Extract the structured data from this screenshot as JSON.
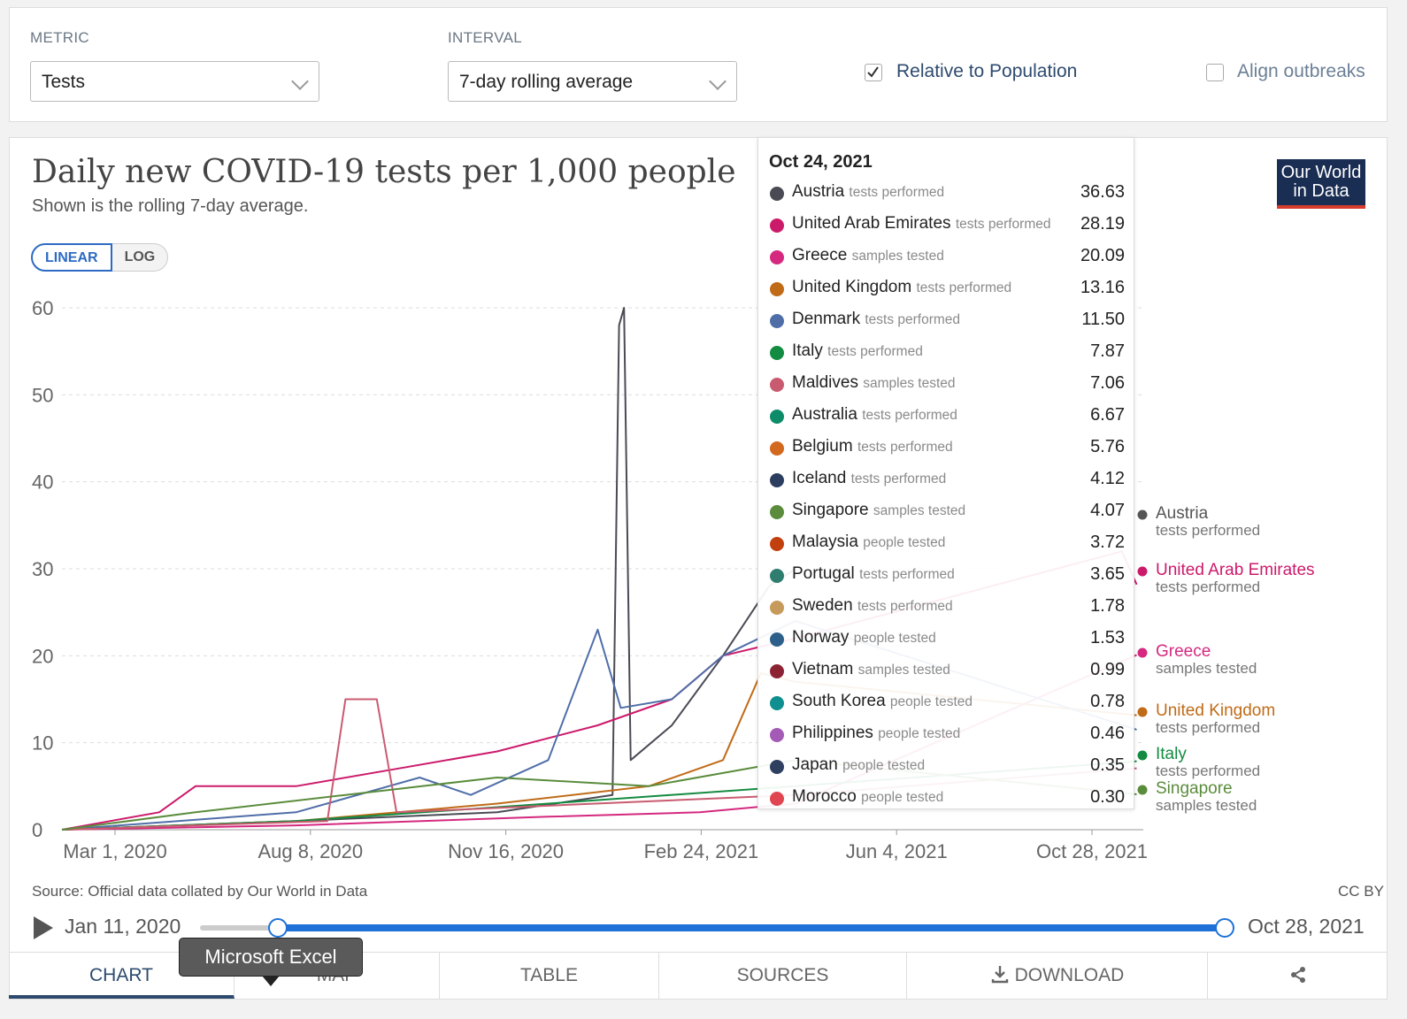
{
  "controls": {
    "metric_label": "METRIC",
    "metric_value": "Tests",
    "interval_label": "INTERVAL",
    "interval_value": "7-day rolling average",
    "relative_label": "Relative to Population",
    "relative_checked": true,
    "align_label": "Align outbreaks",
    "align_checked": false
  },
  "header": {
    "title": "Daily new COVID-19 tests per 1,000 people",
    "subtitle": "Shown is the rolling 7-day average.",
    "scale_linear": "LINEAR",
    "scale_log": "LOG",
    "logo_line1": "Our World",
    "logo_line2": "in Data"
  },
  "chart_data": {
    "type": "line",
    "title": "Daily new COVID-19 tests per 1,000 people",
    "subtitle": "Shown is the rolling 7-day average.",
    "yticks": [
      0,
      10,
      20,
      30,
      40,
      50,
      60
    ],
    "ylim": [
      0,
      60
    ],
    "x_ticks": [
      "Mar 1, 2020",
      "Aug 8, 2020",
      "Nov 16, 2020",
      "Feb 24, 2021",
      "Jun 4, 2021",
      "Oct 28, 2021"
    ],
    "x_range": [
      "2020-01-11",
      "2021-10-28"
    ],
    "series": [
      {
        "name": "Austria",
        "color": "#4a4a55",
        "x": [
          "2020-01-11",
          "2020-06-01",
          "2020-10-01",
          "2020-12-10",
          "2020-12-14",
          "2020-12-17",
          "2020-12-21",
          "2021-01-15",
          "2021-02-15",
          "2021-03-15",
          "2021-03-31"
        ],
        "y": [
          0,
          1,
          2,
          4,
          58,
          60,
          8,
          12,
          20,
          28,
          30
        ]
      },
      {
        "name": "United Arab Emirates",
        "color": "#cc1a6b",
        "x": [
          "2020-01-11",
          "2020-03-10",
          "2020-04-01",
          "2020-06-01",
          "2020-08-01",
          "2020-10-01",
          "2020-12-01",
          "2021-01-15",
          "2021-02-15",
          "2021-03-31",
          "2021-10-15",
          "2021-10-24"
        ],
        "y": [
          0,
          2,
          5,
          5,
          7,
          9,
          12,
          15,
          20,
          22,
          32,
          28.19
        ]
      },
      {
        "name": "Greece",
        "color": "#d4297f",
        "x": [
          "2020-01-11",
          "2020-06-01",
          "2020-11-01",
          "2021-02-01",
          "2021-03-31",
          "2021-10-24"
        ],
        "y": [
          0,
          0.5,
          1.5,
          2,
          3,
          20.09
        ]
      },
      {
        "name": "United Kingdom",
        "color": "#c06b17",
        "x": [
          "2020-01-11",
          "2020-06-01",
          "2020-10-01",
          "2021-01-01",
          "2021-02-15",
          "2021-03-10",
          "2021-03-31",
          "2021-10-24"
        ],
        "y": [
          0,
          1,
          3,
          5,
          8,
          18,
          17,
          13.16
        ]
      },
      {
        "name": "Denmark",
        "color": "#4f6ea8",
        "x": [
          "2020-01-11",
          "2020-06-01",
          "2020-08-15",
          "2020-09-15",
          "2020-11-01",
          "2020-12-01",
          "2020-12-15",
          "2021-01-15",
          "2021-02-15",
          "2021-03-31",
          "2021-10-24"
        ],
        "y": [
          0,
          2,
          6,
          4,
          8,
          23,
          14,
          15,
          20,
          24,
          11.5
        ]
      },
      {
        "name": "Italy",
        "color": "#138b40",
        "x": [
          "2020-01-11",
          "2020-06-01",
          "2020-11-01",
          "2021-03-31",
          "2021-10-24"
        ],
        "y": [
          0,
          1,
          3,
          5,
          7.87
        ]
      },
      {
        "name": "Maldives",
        "color": "#c95b70",
        "x": [
          "2020-01-11",
          "2020-06-20",
          "2020-07-01",
          "2020-07-20",
          "2020-08-01",
          "2021-03-31",
          "2021-10-24"
        ],
        "y": [
          0,
          1,
          15,
          15,
          2,
          4,
          7.06
        ]
      },
      {
        "name": "Singapore",
        "color": "#5a8c3c",
        "x": [
          "2020-01-11",
          "2020-04-01",
          "2020-07-01",
          "2020-10-01",
          "2021-01-01",
          "2021-03-31",
          "2021-10-24"
        ],
        "y": [
          0,
          2,
          4,
          6,
          5,
          8,
          4.07
        ]
      }
    ],
    "labels_right": [
      {
        "name": "Austria",
        "desc": "tests performed",
        "color": "#555555"
      },
      {
        "name": "United Arab Emirates",
        "desc": "tests performed",
        "color": "#cc1a6b"
      },
      {
        "name": "Greece",
        "desc": "samples tested",
        "color": "#d4297f"
      },
      {
        "name": "United Kingdom",
        "desc": "tests performed",
        "color": "#c06b17"
      },
      {
        "name": "Italy",
        "desc": "tests performed",
        "color": "#138b40"
      },
      {
        "name": "Singapore",
        "desc": "samples tested",
        "color": "#5a8c3c"
      }
    ]
  },
  "tooltip": {
    "date": "Oct 24, 2021",
    "rows": [
      {
        "name": "Austria",
        "desc": "tests performed",
        "value": "36.63",
        "color": "#4a4a55"
      },
      {
        "name": "United Arab Emirates",
        "desc": "tests performed",
        "value": "28.19",
        "color": "#cc1a6b"
      },
      {
        "name": "Greece",
        "desc": "samples tested",
        "value": "20.09",
        "color": "#d4297f"
      },
      {
        "name": "United Kingdom",
        "desc": "tests performed",
        "value": "13.16",
        "color": "#c06b17"
      },
      {
        "name": "Denmark",
        "desc": "tests performed",
        "value": "11.50",
        "color": "#4f6ea8"
      },
      {
        "name": "Italy",
        "desc": "tests performed",
        "value": "7.87",
        "color": "#138b40"
      },
      {
        "name": "Maldives",
        "desc": "samples tested",
        "value": "7.06",
        "color": "#c95b70"
      },
      {
        "name": "Australia",
        "desc": "tests performed",
        "value": "6.67",
        "color": "#0e8c6a"
      },
      {
        "name": "Belgium",
        "desc": "tests performed",
        "value": "5.76",
        "color": "#d2691e"
      },
      {
        "name": "Iceland",
        "desc": "tests performed",
        "value": "4.12",
        "color": "#2c3e60"
      },
      {
        "name": "Singapore",
        "desc": "samples tested",
        "value": "4.07",
        "color": "#5a8c3c"
      },
      {
        "name": "Malaysia",
        "desc": "people tested",
        "value": "3.72",
        "color": "#c2400e"
      },
      {
        "name": "Portugal",
        "desc": "tests performed",
        "value": "3.65",
        "color": "#2e7d6e"
      },
      {
        "name": "Sweden",
        "desc": "tests performed",
        "value": "1.78",
        "color": "#c69a5a"
      },
      {
        "name": "Norway",
        "desc": "people tested",
        "value": "1.53",
        "color": "#2d5f8b"
      },
      {
        "name": "Vietnam",
        "desc": "samples tested",
        "value": "0.99",
        "color": "#8b2333"
      },
      {
        "name": "South Korea",
        "desc": "people tested",
        "value": "0.78",
        "color": "#0f8f8f"
      },
      {
        "name": "Philippines",
        "desc": "people tested",
        "value": "0.46",
        "color": "#a35bb5"
      },
      {
        "name": "Japan",
        "desc": "people tested",
        "value": "0.35",
        "color": "#2f3f60"
      },
      {
        "name": "Morocco",
        "desc": "people tested",
        "value": "0.30",
        "color": "#e04651"
      }
    ]
  },
  "footer": {
    "source": "Source: Official data collated by Our World in Data",
    "license": "CC BY"
  },
  "timeline": {
    "start": "Jan 11, 2020",
    "end": "Oct 28, 2021"
  },
  "tabs": {
    "chart": "CHART",
    "map": "MAP",
    "table": "TABLE",
    "sources": "SOURCES",
    "download": "DOWNLOAD"
  },
  "os_tooltip": "Microsoft Excel",
  "colors": {
    "accent": "#1e72d7",
    "brand": "#1a2d53",
    "grid": "#dddddd"
  }
}
